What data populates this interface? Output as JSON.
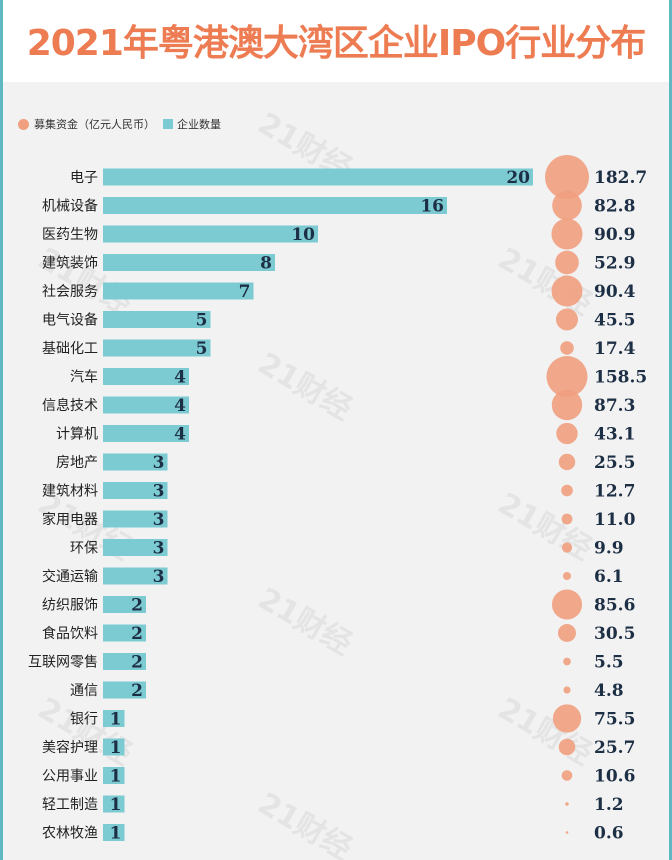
{
  "title": "2021年粤港澳大湾区企业IPO行业分布",
  "watermark": "21财经",
  "legend": {
    "funds": "募集资金（亿元人民币）",
    "count": "企业数量"
  },
  "colors": {
    "title": "#ee7c52",
    "bar": "#7ccad2",
    "bubble": "#ef9f7e",
    "accent_rule": "#5fb8c2"
  },
  "chart_data": {
    "type": "bar",
    "title": "2021年粤港澳大湾区企业IPO行业分布",
    "categories": [
      "电子",
      "机械设备",
      "医药生物",
      "建筑装饰",
      "社会服务",
      "电气设备",
      "基础化工",
      "汽车",
      "信息技术",
      "计算机",
      "房地产",
      "建筑材料",
      "家用电器",
      "环保",
      "交通运输",
      "纺织服饰",
      "食品饮料",
      "互联网零售",
      "通信",
      "银行",
      "美容护理",
      "公用事业",
      "轻工制造",
      "农林牧渔"
    ],
    "series": [
      {
        "name": "企业数量",
        "values": [
          20,
          16,
          10,
          8,
          7,
          5,
          5,
          4,
          4,
          4,
          3,
          3,
          3,
          3,
          3,
          2,
          2,
          2,
          2,
          1,
          1,
          1,
          1,
          1
        ]
      },
      {
        "name": "募集资金（亿元人民币）",
        "values": [
          182.7,
          82.8,
          90.9,
          52.9,
          90.4,
          45.5,
          17.4,
          158.5,
          87.3,
          43.1,
          25.5,
          12.7,
          11.0,
          9.9,
          6.1,
          85.6,
          30.5,
          5.5,
          4.8,
          75.5,
          25.7,
          10.6,
          1.2,
          0.6
        ]
      }
    ],
    "funds_labels": [
      "182.7",
      "82.8",
      "90.9",
      "52.9",
      "90.4",
      "45.5",
      "17.4",
      "158.5",
      "87.3",
      "43.1",
      "25.5",
      "12.7",
      "11.0",
      "9.9",
      "6.1",
      "85.6",
      "30.5",
      "5.5",
      "4.8",
      "75.5",
      "25.7",
      "10.6",
      "1.2",
      "0.6"
    ],
    "legend_position": "top-left",
    "grid": false
  }
}
